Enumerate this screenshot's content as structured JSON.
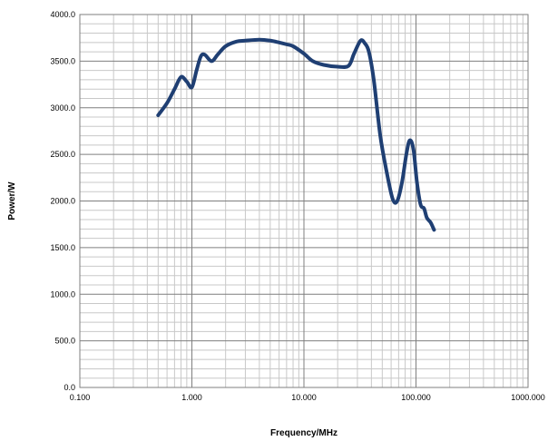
{
  "chart_data": {
    "type": "line",
    "title": "",
    "xlabel": "Frequency/MHz",
    "ylabel": "Power/W",
    "x_scale": "log",
    "xlim": [
      0.1,
      1000
    ],
    "ylim": [
      0,
      4000
    ],
    "x_tick_labels": [
      "0.100",
      "1.000",
      "10.000",
      "100.000",
      "1000.000"
    ],
    "y_tick_labels": [
      "0.0",
      "500.0",
      "1000.0",
      "1500.0",
      "2000.0",
      "2500.0",
      "3000.0",
      "3500.0",
      "4000.0"
    ],
    "y_major_step": 500,
    "y_minor_step": 100,
    "grid": true,
    "legend": "none",
    "series": [
      {
        "color": "#1f3f73",
        "x": [
          0.5,
          0.6,
          0.7,
          0.8,
          0.9,
          1.0,
          1.1,
          1.2,
          1.3,
          1.5,
          1.7,
          2.0,
          2.5,
          3.0,
          4.0,
          5.0,
          6.0,
          7.0,
          8.0,
          10.0,
          12.0,
          15.0,
          20.0,
          25.0,
          28.0,
          32.0,
          35.0,
          38.0,
          42.0,
          48.0,
          55.0,
          62.0,
          68.0,
          75.0,
          82.0,
          88.0,
          95.0,
          102.0,
          110.0,
          118.0,
          125.0,
          135.0,
          145.0
        ],
        "y": [
          2920,
          3050,
          3200,
          3330,
          3280,
          3220,
          3400,
          3550,
          3570,
          3500,
          3570,
          3660,
          3710,
          3720,
          3730,
          3720,
          3700,
          3680,
          3660,
          3580,
          3500,
          3460,
          3440,
          3450,
          3580,
          3720,
          3690,
          3600,
          3300,
          2700,
          2300,
          2020,
          2000,
          2200,
          2500,
          2650,
          2550,
          2200,
          1960,
          1920,
          1820,
          1770,
          1690
        ]
      }
    ]
  }
}
